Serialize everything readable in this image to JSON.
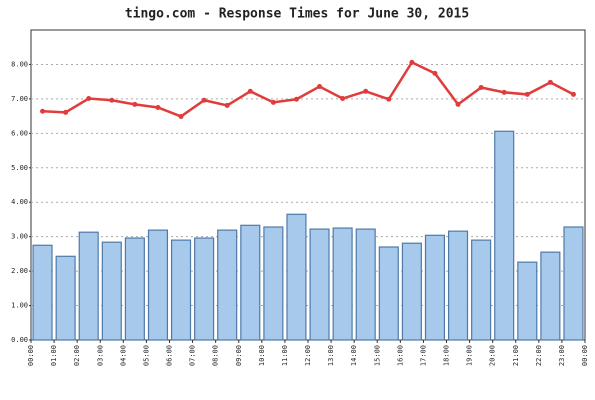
{
  "chart_data": {
    "type": "bar_line",
    "title": "tingo.com - Response Times for June 30, 2015",
    "xlim": [
      0,
      24
    ],
    "xticks": [
      {
        "value": 0,
        "label": "00:00"
      },
      {
        "value": 1,
        "label": "01:00"
      },
      {
        "value": 2,
        "label": "02:00"
      },
      {
        "value": 3,
        "label": "03:00"
      },
      {
        "value": 4,
        "label": "04:00"
      },
      {
        "value": 5,
        "label": "05:00"
      },
      {
        "value": 6,
        "label": "06:00"
      },
      {
        "value": 7,
        "label": "07:00"
      },
      {
        "value": 8,
        "label": "08:00"
      },
      {
        "value": 9,
        "label": "09:00"
      },
      {
        "value": 10,
        "label": "10:00"
      },
      {
        "value": 11,
        "label": "11:00"
      },
      {
        "value": 12,
        "label": "12:00"
      },
      {
        "value": 13,
        "label": "13:00"
      },
      {
        "value": 14,
        "label": "14:00"
      },
      {
        "value": 15,
        "label": "15:00"
      },
      {
        "value": 16,
        "label": "16:00"
      },
      {
        "value": 17,
        "label": "17:00"
      },
      {
        "value": 18,
        "label": "18:00"
      },
      {
        "value": 19,
        "label": "19:00"
      },
      {
        "value": 20,
        "label": "20:00"
      },
      {
        "value": 21,
        "label": "21:00"
      },
      {
        "value": 22,
        "label": "22:00"
      },
      {
        "value": 23,
        "label": "23:00"
      },
      {
        "value": 24,
        "label": "00:00"
      }
    ],
    "x": [
      0.5,
      1.5,
      2.5,
      3.5,
      4.5,
      5.5,
      6.5,
      7.5,
      8.5,
      9.5,
      10.5,
      11.5,
      12.5,
      13.5,
      14.5,
      15.5,
      16.5,
      17.5,
      18.5,
      19.5,
      20.5,
      21.5,
      22.5,
      23.5
    ],
    "ylim": [
      0,
      9
    ],
    "yticks": [
      {
        "value": 0,
        "label": "0.00"
      },
      {
        "value": 1,
        "label": "1.00"
      },
      {
        "value": 2,
        "label": "2.00"
      },
      {
        "value": 3,
        "label": "3.00"
      },
      {
        "value": 4,
        "label": "4.00"
      },
      {
        "value": 5,
        "label": "5.00"
      },
      {
        "value": 6,
        "label": "6.00"
      },
      {
        "value": 7,
        "label": "7.00"
      },
      {
        "value": 8,
        "label": "8.00"
      }
    ],
    "grid": true,
    "series": [
      {
        "type": "bar",
        "color": "#a6c9ec",
        "values": [
          2.75,
          2.43,
          3.13,
          2.84,
          2.96,
          3.19,
          2.9,
          2.96,
          3.19,
          3.33,
          3.28,
          3.65,
          3.22,
          3.25,
          3.22,
          2.7,
          2.81,
          3.04,
          3.16,
          2.9,
          6.06,
          2.26,
          2.55,
          3.28
        ]
      },
      {
        "type": "line",
        "color": "#e03c3c",
        "values": [
          6.64,
          6.61,
          7.01,
          6.96,
          6.84,
          6.75,
          6.49,
          6.96,
          6.81,
          7.22,
          6.9,
          6.99,
          7.36,
          7.01,
          7.22,
          6.99,
          8.06,
          7.74,
          6.84,
          7.33,
          7.19,
          7.13,
          7.48,
          7.13
        ]
      }
    ]
  }
}
